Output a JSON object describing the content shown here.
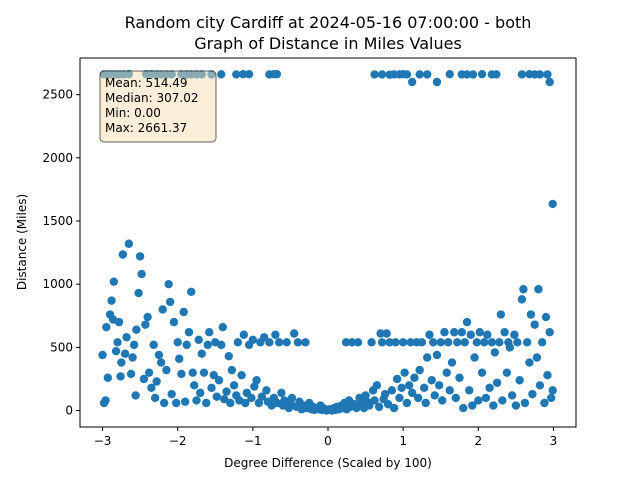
{
  "chart_data": {
    "type": "scatter",
    "title_line1": "Random city Cardiff at 2024-05-16 07:00:00  - both",
    "title_line2": "Graph of Distance in Miles Values",
    "xlabel": "Degree Difference (Scaled by 100)",
    "ylabel": "Distance (Miles)",
    "xlim": [
      -3.3,
      3.3
    ],
    "ylim": [
      -130,
      2790
    ],
    "x_ticks": [
      -3,
      -2,
      -1,
      0,
      1,
      2,
      3
    ],
    "y_ticks": [
      0,
      500,
      1000,
      1500,
      2000,
      2500
    ],
    "point_color": "#1f77b4",
    "stats_box": {
      "lines": [
        "Mean: 514.49",
        "Median: 307.02",
        "Min: 0.00",
        "Max: 2661.37"
      ],
      "face_color": "#f5deb3"
    },
    "series": [
      {
        "points": [
          [
            -2.98,
            2660
          ],
          [
            -2.93,
            2660
          ],
          [
            -2.88,
            2660
          ],
          [
            -2.83,
            2660
          ],
          [
            -2.78,
            2660
          ],
          [
            -2.72,
            2660
          ],
          [
            -2.65,
            2662
          ],
          [
            -2.42,
            2662
          ],
          [
            -2.35,
            2662
          ],
          [
            -2.28,
            2660
          ],
          [
            -2.22,
            2660
          ],
          [
            -2.15,
            2660
          ],
          [
            -2.08,
            2660
          ],
          [
            -1.95,
            2660
          ],
          [
            -1.88,
            2660
          ],
          [
            -1.82,
            2660
          ],
          [
            -1.75,
            2660
          ],
          [
            -1.68,
            2660
          ],
          [
            -1.55,
            2660
          ],
          [
            -1.42,
            2661
          ],
          [
            -1.22,
            2660
          ],
          [
            -1.13,
            2662
          ],
          [
            -1.05,
            2662
          ],
          [
            -0.78,
            2660
          ],
          [
            -0.72,
            2662
          ],
          [
            -0.68,
            2662
          ],
          [
            0.62,
            2660
          ],
          [
            0.72,
            2660
          ],
          [
            0.82,
            2658
          ],
          [
            0.88,
            2660
          ],
          [
            0.95,
            2660
          ],
          [
            1.0,
            2662
          ],
          [
            1.05,
            2660
          ],
          [
            1.12,
            2600
          ],
          [
            1.22,
            2660
          ],
          [
            1.32,
            2660
          ],
          [
            1.45,
            2600
          ],
          [
            1.62,
            2662
          ],
          [
            1.78,
            2660
          ],
          [
            1.85,
            2660
          ],
          [
            1.93,
            2660
          ],
          [
            2.05,
            2662
          ],
          [
            2.18,
            2660
          ],
          [
            2.24,
            2660
          ],
          [
            2.58,
            2660
          ],
          [
            2.68,
            2662
          ],
          [
            2.75,
            2660
          ],
          [
            2.82,
            2660
          ],
          [
            2.92,
            2660
          ],
          [
            2.95,
            2600
          ],
          [
            2.99,
            1635
          ],
          [
            -3.0,
            440
          ],
          [
            -2.98,
            60
          ],
          [
            -2.96,
            80
          ],
          [
            -2.95,
            660
          ],
          [
            -2.93,
            260
          ],
          [
            -2.9,
            760
          ],
          [
            -2.88,
            870
          ],
          [
            -2.86,
            720
          ],
          [
            -2.85,
            1020
          ],
          [
            -2.82,
            470
          ],
          [
            -2.8,
            540
          ],
          [
            -2.78,
            700
          ],
          [
            -2.76,
            270
          ],
          [
            -2.75,
            380
          ],
          [
            -2.73,
            1235
          ],
          [
            -2.7,
            450
          ],
          [
            -2.68,
            580
          ],
          [
            -2.65,
            1320
          ],
          [
            -2.62,
            290
          ],
          [
            -2.6,
            420
          ],
          [
            -2.58,
            520
          ],
          [
            -2.56,
            120
          ],
          [
            -2.55,
            640
          ],
          [
            -2.52,
            930
          ],
          [
            -2.5,
            1220
          ],
          [
            -2.48,
            1080
          ],
          [
            -2.45,
            250
          ],
          [
            -2.43,
            680
          ],
          [
            -2.4,
            740
          ],
          [
            -2.38,
            300
          ],
          [
            -2.35,
            180
          ],
          [
            -2.32,
            520
          ],
          [
            -2.3,
            100
          ],
          [
            -2.28,
            230
          ],
          [
            -2.25,
            440
          ],
          [
            -2.22,
            380
          ],
          [
            -2.2,
            800
          ],
          [
            -2.18,
            60
          ],
          [
            -2.15,
            320
          ],
          [
            -2.12,
            1000
          ],
          [
            -2.1,
            860
          ],
          [
            -2.08,
            130
          ],
          [
            -2.05,
            700
          ],
          [
            -2.02,
            60
          ],
          [
            -2.0,
            540
          ],
          [
            -1.98,
            410
          ],
          [
            -1.95,
            290
          ],
          [
            -1.92,
            780
          ],
          [
            -1.9,
            70
          ],
          [
            -1.88,
            520
          ],
          [
            -1.85,
            620
          ],
          [
            -1.82,
            940
          ],
          [
            -1.8,
            300
          ],
          [
            -1.78,
            200
          ],
          [
            -1.75,
            80
          ],
          [
            -1.72,
            560
          ],
          [
            -1.7,
            140
          ],
          [
            -1.68,
            450
          ],
          [
            -1.65,
            300
          ],
          [
            -1.62,
            60
          ],
          [
            -1.6,
            520
          ],
          [
            -1.58,
            620
          ],
          [
            -1.55,
            180
          ],
          [
            -1.52,
            280
          ],
          [
            -1.5,
            540
          ],
          [
            -1.48,
            110
          ],
          [
            -1.45,
            240
          ],
          [
            -1.42,
            520
          ],
          [
            -1.4,
            660
          ],
          [
            -1.38,
            90
          ],
          [
            -1.35,
            150
          ],
          [
            -1.32,
            430
          ],
          [
            -1.3,
            60
          ],
          [
            -1.28,
            320
          ],
          [
            -1.25,
            200
          ],
          [
            -1.22,
            120
          ],
          [
            -1.2,
            540
          ],
          [
            -1.18,
            80
          ],
          [
            -1.15,
            280
          ],
          [
            -1.12,
            600
          ],
          [
            -1.1,
            60
          ],
          [
            -1.08,
            140
          ],
          [
            -1.05,
            520
          ],
          [
            -1.02,
            100
          ],
          [
            -1.0,
            560
          ],
          [
            -0.98,
            190
          ],
          [
            -0.95,
            240
          ],
          [
            -0.92,
            60
          ],
          [
            -0.9,
            540
          ],
          [
            -0.88,
            110
          ],
          [
            -0.85,
            580
          ],
          [
            -0.82,
            160
          ],
          [
            -0.8,
            70
          ],
          [
            -0.78,
            540
          ],
          [
            -0.75,
            40
          ],
          [
            -0.72,
            100
          ],
          [
            -0.7,
            600
          ],
          [
            -0.68,
            60
          ],
          [
            -0.65,
            540
          ],
          [
            -0.62,
            140
          ],
          [
            -0.6,
            40
          ],
          [
            -0.58,
            80
          ],
          [
            -0.55,
            540
          ],
          [
            -0.52,
            20
          ],
          [
            -0.5,
            60
          ],
          [
            -0.48,
            100
          ],
          [
            -0.45,
            610
          ],
          [
            -0.42,
            30
          ],
          [
            -0.4,
            540
          ],
          [
            -0.38,
            70
          ],
          [
            -0.35,
            10
          ],
          [
            -0.32,
            40
          ],
          [
            -0.3,
            540
          ],
          [
            -0.28,
            20
          ],
          [
            -0.25,
            60
          ],
          [
            -0.22,
            10
          ],
          [
            -0.2,
            30
          ],
          [
            -0.18,
            5
          ],
          [
            -0.15,
            20
          ],
          [
            -0.12,
            10
          ],
          [
            -0.1,
            40
          ],
          [
            -0.08,
            5
          ],
          [
            -0.05,
            15
          ],
          [
            -0.02,
            0
          ],
          [
            0.0,
            5
          ],
          [
            0.02,
            10
          ],
          [
            0.05,
            0
          ],
          [
            0.08,
            20
          ],
          [
            0.1,
            5
          ],
          [
            0.12,
            30
          ],
          [
            0.15,
            10
          ],
          [
            0.18,
            40
          ],
          [
            0.2,
            20
          ],
          [
            0.22,
            60
          ],
          [
            0.24,
            540
          ],
          [
            0.25,
            10
          ],
          [
            0.28,
            80
          ],
          [
            0.3,
            30
          ],
          [
            0.32,
            540
          ],
          [
            0.35,
            50
          ],
          [
            0.38,
            20
          ],
          [
            0.4,
            540
          ],
          [
            0.42,
            100
          ],
          [
            0.45,
            60
          ],
          [
            0.48,
            20
          ],
          [
            0.5,
            120
          ],
          [
            0.52,
            70
          ],
          [
            0.55,
            40
          ],
          [
            0.58,
            540
          ],
          [
            0.6,
            160
          ],
          [
            0.62,
            80
          ],
          [
            0.65,
            200
          ],
          [
            0.68,
            30
          ],
          [
            0.7,
            610
          ],
          [
            0.72,
            540
          ],
          [
            0.74,
            90
          ],
          [
            0.76,
            130
          ],
          [
            0.78,
            610
          ],
          [
            0.8,
            50
          ],
          [
            0.82,
            540
          ],
          [
            0.85,
            160
          ],
          [
            0.88,
            20
          ],
          [
            0.9,
            540
          ],
          [
            0.92,
            250
          ],
          [
            0.95,
            100
          ],
          [
            0.98,
            180
          ],
          [
            1.0,
            540
          ],
          [
            1.02,
            300
          ],
          [
            1.05,
            60
          ],
          [
            1.08,
            200
          ],
          [
            1.1,
            540
          ],
          [
            1.12,
            140
          ],
          [
            1.15,
            260
          ],
          [
            1.18,
            540
          ],
          [
            1.2,
            100
          ],
          [
            1.22,
            320
          ],
          [
            1.25,
            540
          ],
          [
            1.28,
            180
          ],
          [
            1.3,
            60
          ],
          [
            1.32,
            420
          ],
          [
            1.35,
            600
          ],
          [
            1.38,
            240
          ],
          [
            1.4,
            540
          ],
          [
            1.42,
            120
          ],
          [
            1.45,
            440
          ],
          [
            1.48,
            200
          ],
          [
            1.5,
            540
          ],
          [
            1.52,
            80
          ],
          [
            1.55,
            620
          ],
          [
            1.58,
            300
          ],
          [
            1.6,
            540
          ],
          [
            1.62,
            160
          ],
          [
            1.65,
            380
          ],
          [
            1.68,
            620
          ],
          [
            1.7,
            100
          ],
          [
            1.72,
            540
          ],
          [
            1.75,
            260
          ],
          [
            1.78,
            620
          ],
          [
            1.8,
            20
          ],
          [
            1.82,
            540
          ],
          [
            1.85,
            700
          ],
          [
            1.88,
            160
          ],
          [
            1.9,
            600
          ],
          [
            1.92,
            40
          ],
          [
            1.95,
            420
          ],
          [
            1.98,
            540
          ],
          [
            2.0,
            80
          ],
          [
            2.02,
            620
          ],
          [
            2.05,
            300
          ],
          [
            2.08,
            540
          ],
          [
            2.1,
            100
          ],
          [
            2.12,
            600
          ],
          [
            2.15,
            180
          ],
          [
            2.18,
            540
          ],
          [
            2.2,
            40
          ],
          [
            2.22,
            460
          ],
          [
            2.25,
            220
          ],
          [
            2.28,
            540
          ],
          [
            2.3,
            760
          ],
          [
            2.32,
            80
          ],
          [
            2.35,
            620
          ],
          [
            2.38,
            300
          ],
          [
            2.4,
            540
          ],
          [
            2.42,
            500
          ],
          [
            2.45,
            120
          ],
          [
            2.48,
            600
          ],
          [
            2.5,
            40
          ],
          [
            2.52,
            540
          ],
          [
            2.55,
            240
          ],
          [
            2.58,
            880
          ],
          [
            2.6,
            960
          ],
          [
            2.62,
            60
          ],
          [
            2.65,
            540
          ],
          [
            2.68,
            380
          ],
          [
            2.7,
            760
          ],
          [
            2.72,
            130
          ],
          [
            2.75,
            680
          ],
          [
            2.78,
            420
          ],
          [
            2.8,
            960
          ],
          [
            2.82,
            200
          ],
          [
            2.85,
            540
          ],
          [
            2.88,
            60
          ],
          [
            2.9,
            740
          ],
          [
            2.92,
            280
          ],
          [
            2.95,
            620
          ],
          [
            2.97,
            100
          ],
          [
            2.99,
            160
          ]
        ]
      }
    ]
  }
}
